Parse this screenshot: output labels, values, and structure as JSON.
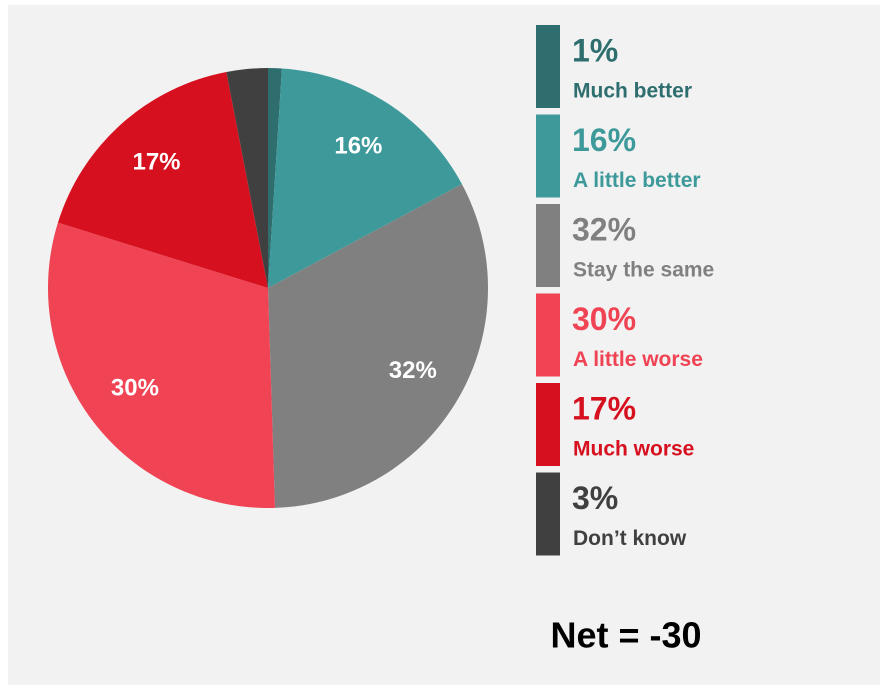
{
  "chart_data": {
    "type": "pie",
    "categories": [
      "Much better",
      "A little better",
      "Stay the same",
      "A little worse",
      "Much worse",
      "Don’t know"
    ],
    "values": [
      1,
      16,
      32,
      30,
      17,
      3
    ],
    "value_labels": [
      "1%",
      "16%",
      "32%",
      "30%",
      "17%",
      "3%"
    ],
    "colors": [
      "#2e6e6f",
      "#3e9a9a",
      "#808080",
      "#f04353",
      "#d7101f",
      "#404040"
    ],
    "annotation": "Net = -30"
  }
}
